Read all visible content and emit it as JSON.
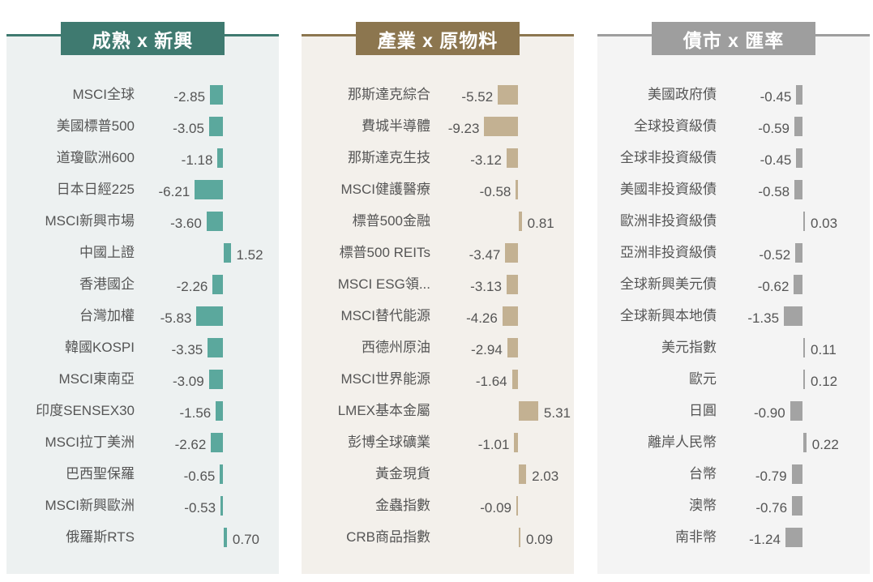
{
  "chart_data": [
    {
      "type": "bar",
      "orientation": "horizontal",
      "title": "成熟 x 新興",
      "header_color": "#3f7a70",
      "bar_color": "#5ba89d",
      "background": "#edf1f1",
      "categories": [
        "MSCI全球",
        "美國標普500",
        "道瓊歐洲600",
        "日本日經225",
        "MSCI新興市場",
        "中國上證",
        "香港國企",
        "台灣加權",
        "韓國KOSPI",
        "MSCI東南亞",
        "印度SENSEX30",
        "MSCI拉丁美洲",
        "巴西聖保羅",
        "MSCI新興歐洲",
        "俄羅斯RTS"
      ],
      "values": [
        -2.85,
        -3.05,
        -1.18,
        -6.21,
        -3.6,
        1.52,
        -2.26,
        -5.83,
        -3.35,
        -3.09,
        -1.56,
        -2.62,
        -0.65,
        -0.53,
        0.7
      ],
      "labels": [
        "-2.85",
        "-3.05",
        "-1.18",
        "-6.21",
        "-3.60",
        "1.52",
        "-2.26",
        "-5.83",
        "-3.35",
        "-3.09",
        "-1.56",
        "-2.62",
        "-0.65",
        "-0.53",
        "0.70"
      ]
    },
    {
      "type": "bar",
      "orientation": "horizontal",
      "title": "產業 x 原物料",
      "header_color": "#8c764f",
      "bar_color": "#c3b192",
      "background": "#f3f0eb",
      "categories": [
        "那斯達克綜合",
        "費城半導體",
        "那斯達克生技",
        "MSCI健護醫療",
        "標普500金融",
        "標普500 REITs",
        "MSCI ESG領...",
        "MSCI替代能源",
        "西德州原油",
        "MSCI世界能源",
        "LMEX基本金屬",
        "彭博全球礦業",
        "黃金現貨",
        "金蟲指數",
        "CRB商品指數"
      ],
      "values": [
        -5.52,
        -9.23,
        -3.12,
        -0.58,
        0.81,
        -3.47,
        -3.13,
        -4.26,
        -2.94,
        -1.64,
        5.31,
        -1.01,
        2.03,
        -0.09,
        0.09
      ],
      "labels": [
        "-5.52",
        "-9.23",
        "-3.12",
        "-0.58",
        "0.81",
        "-3.47",
        "-3.13",
        "-4.26",
        "-2.94",
        "-1.64",
        "5.31",
        "-1.01",
        "2.03",
        "-0.09",
        "0.09"
      ]
    },
    {
      "type": "bar",
      "orientation": "horizontal",
      "title": "債市 x 匯率",
      "header_color": "#9e9e9e",
      "bar_color": "#a3a3a3",
      "background": "#f4f4f4",
      "categories": [
        "美國政府債",
        "全球投資級債",
        "全球非投資級債",
        "美國非投資級債",
        "歐洲非投資級債",
        "亞洲非投資級債",
        "全球新興美元債",
        "全球新興本地債",
        "美元指數",
        "歐元",
        "日圓",
        "離岸人民幣",
        "台幣",
        "澳幣",
        "南非幣"
      ],
      "values": [
        -0.45,
        -0.59,
        -0.45,
        -0.58,
        0.03,
        -0.52,
        -0.62,
        -1.35,
        0.11,
        0.12,
        -0.9,
        0.22,
        -0.79,
        -0.76,
        -1.24
      ],
      "labels": [
        "-0.45",
        "-0.59",
        "-0.45",
        "-0.58",
        "0.03",
        "-0.52",
        "-0.62",
        "-1.35",
        "0.11",
        "0.12",
        "-0.90",
        "0.22",
        "-0.79",
        "-0.76",
        "-1.24"
      ]
    }
  ]
}
